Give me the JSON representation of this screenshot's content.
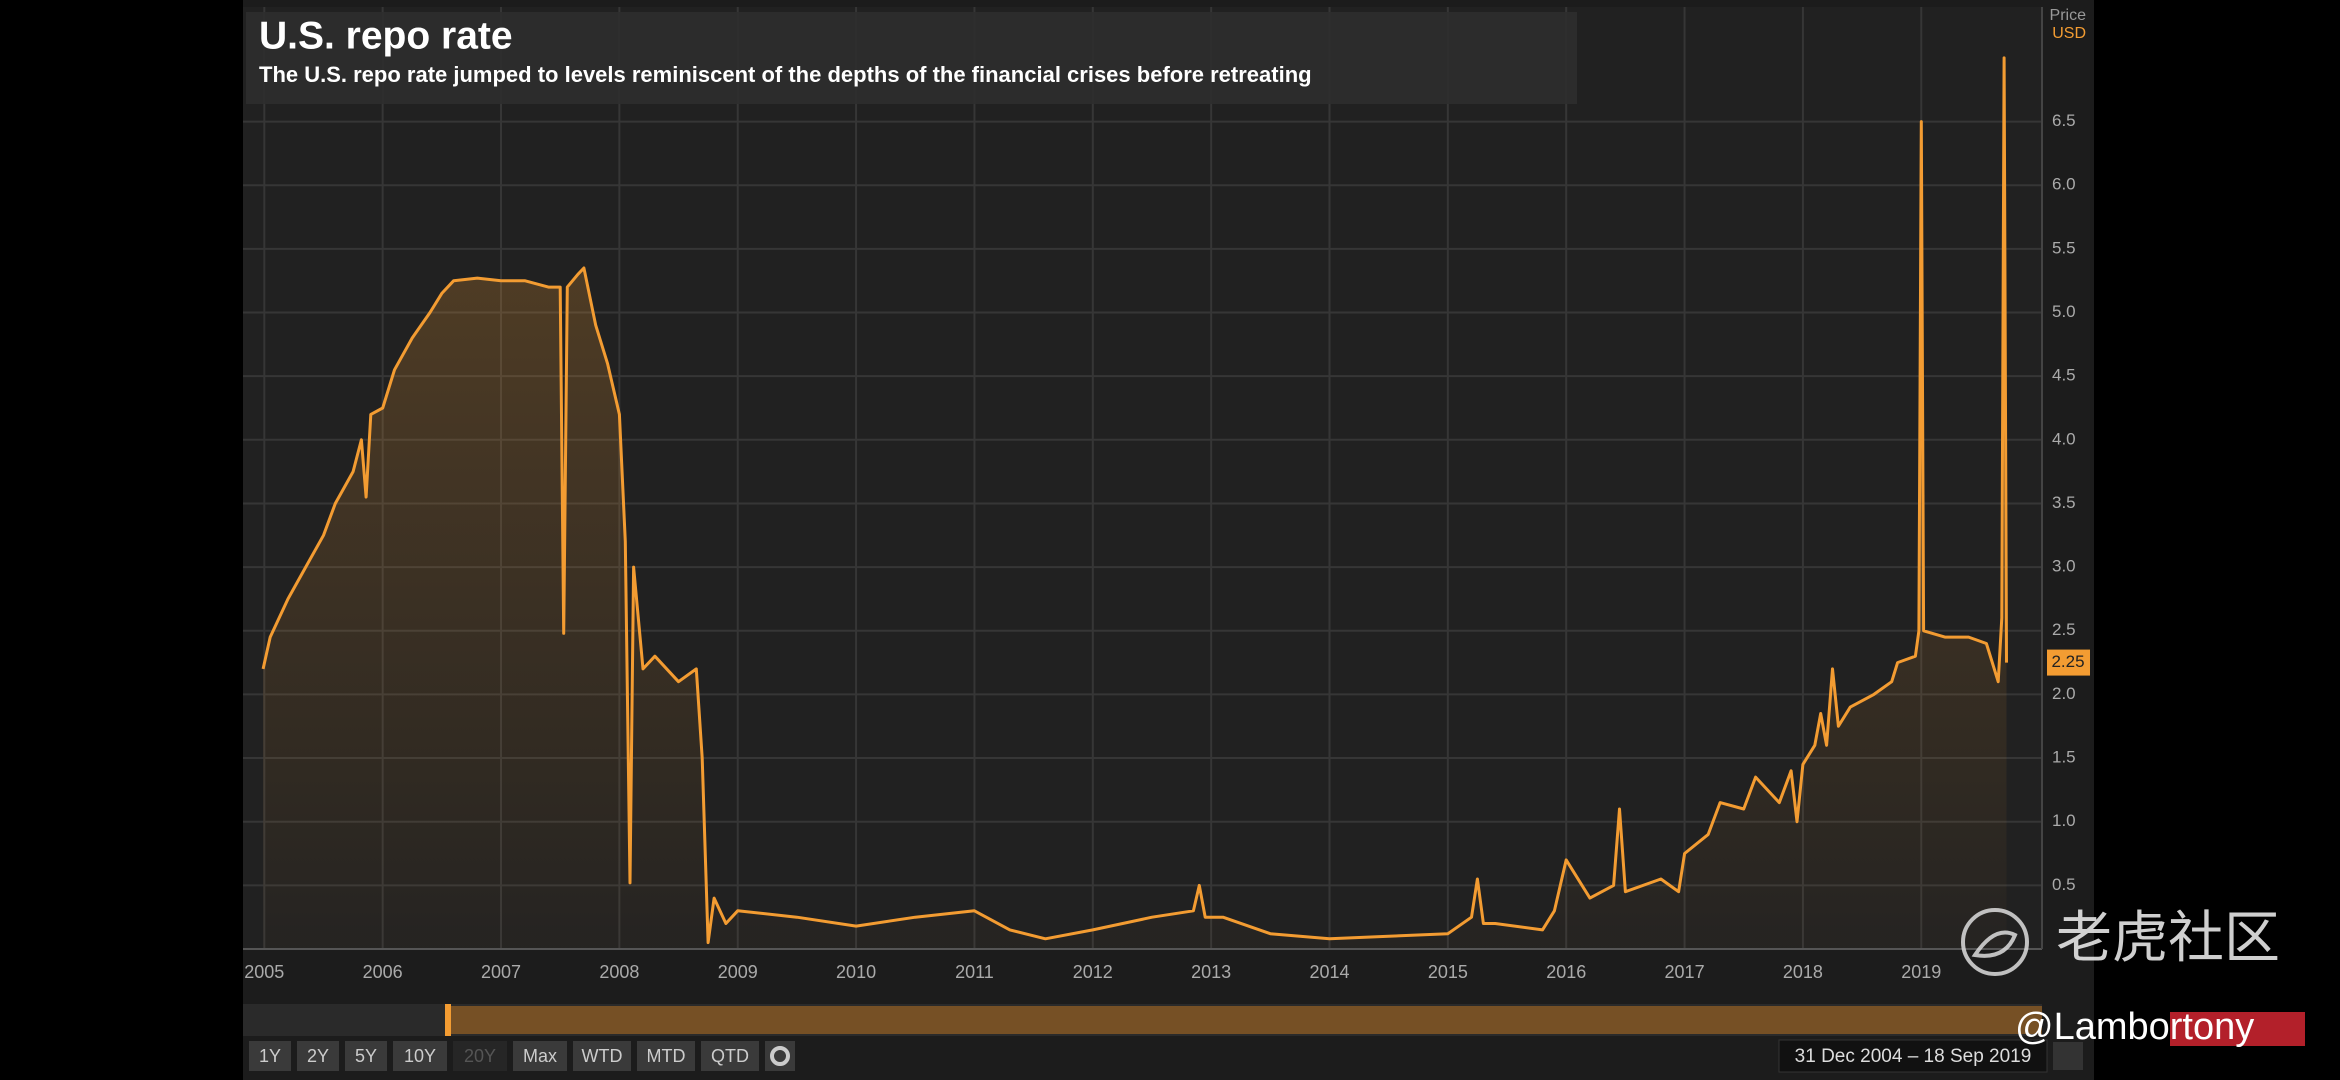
{
  "chart_data": {
    "type": "line",
    "title": "U.S. repo rate",
    "subtitle": "The U.S. repo rate jumped to levels reminiscent of the depths of the financial crises before retreating",
    "y_axis_label": "Price",
    "y_axis_unit": "USD",
    "series": [
      {
        "name": "U.S. repo rate",
        "color": "#f39c32",
        "x": [
          2004.99,
          2005.05,
          2005.2,
          2005.35,
          2005.5,
          2005.6,
          2005.75,
          2005.82,
          2005.86,
          2005.9,
          2006.0,
          2006.1,
          2006.25,
          2006.4,
          2006.5,
          2006.6,
          2006.8,
          2007.0,
          2007.2,
          2007.4,
          2007.5,
          2007.53,
          2007.56,
          2007.65,
          2007.7,
          2007.8,
          2007.9,
          2008.0,
          2008.05,
          2008.09,
          2008.12,
          2008.2,
          2008.3,
          2008.5,
          2008.65,
          2008.7,
          2008.75,
          2008.8,
          2008.9,
          2009.0,
          2009.5,
          2010.0,
          2010.5,
          2011.0,
          2011.3,
          2011.6,
          2012.0,
          2012.5,
          2012.85,
          2012.9,
          2012.95,
          2013.1,
          2013.5,
          2014.0,
          2014.5,
          2015.0,
          2015.2,
          2015.25,
          2015.3,
          2015.4,
          2015.8,
          2015.9,
          2016.0,
          2016.2,
          2016.4,
          2016.45,
          2016.5,
          2016.8,
          2016.95,
          2017.0,
          2017.2,
          2017.3,
          2017.5,
          2017.6,
          2017.8,
          2017.9,
          2017.95,
          2018.0,
          2018.1,
          2018.15,
          2018.2,
          2018.25,
          2018.3,
          2018.4,
          2018.6,
          2018.75,
          2018.8,
          2018.95,
          2018.98,
          2019.0,
          2019.02,
          2019.2,
          2019.4,
          2019.55,
          2019.65,
          2019.68,
          2019.7,
          2019.72
        ],
        "values": [
          2.2,
          2.45,
          2.75,
          3.0,
          3.25,
          3.5,
          3.75,
          4.0,
          3.55,
          4.2,
          4.25,
          4.55,
          4.8,
          5.0,
          5.15,
          5.25,
          5.27,
          5.25,
          5.25,
          5.2,
          5.2,
          2.48,
          5.2,
          5.3,
          5.35,
          4.9,
          4.6,
          4.2,
          3.2,
          0.52,
          3.0,
          2.2,
          2.3,
          2.1,
          2.2,
          1.5,
          0.05,
          0.4,
          0.2,
          0.3,
          0.25,
          0.18,
          0.25,
          0.3,
          0.15,
          0.08,
          0.15,
          0.25,
          0.3,
          0.5,
          0.25,
          0.25,
          0.12,
          0.08,
          0.1,
          0.12,
          0.25,
          0.55,
          0.2,
          0.2,
          0.15,
          0.3,
          0.7,
          0.4,
          0.5,
          1.1,
          0.45,
          0.55,
          0.45,
          0.75,
          0.9,
          1.15,
          1.1,
          1.35,
          1.15,
          1.4,
          1.0,
          1.45,
          1.6,
          1.85,
          1.6,
          2.2,
          1.75,
          1.9,
          2.0,
          2.1,
          2.25,
          2.3,
          2.5,
          6.5,
          2.5,
          2.45,
          2.45,
          2.4,
          2.1,
          2.6,
          7.0,
          2.25
        ]
      }
    ],
    "last_value": 2.25,
    "xlim": [
      2004.82,
      2020.02
    ],
    "xticks": [
      2005,
      2006,
      2007,
      2008,
      2009,
      2010,
      2011,
      2012,
      2013,
      2014,
      2015,
      2016,
      2017,
      2018,
      2019
    ],
    "ylim": [
      0,
      7.4
    ],
    "yticks": [
      0.5,
      {
        "value": 1,
        "label": "1.0"
      },
      1.5,
      {
        "value": 2,
        "label": "2.0"
      },
      2.5,
      {
        "value": 3,
        "label": "3.0"
      },
      3.5,
      {
        "value": 4,
        "label": "4.0"
      },
      4.5,
      {
        "value": 5,
        "label": "5.0"
      },
      5.5,
      {
        "value": 6,
        "label": "6.0"
      },
      6.5
    ],
    "grid": true
  },
  "controls": {
    "buttons": [
      "1Y",
      "2Y",
      "5Y",
      "10Y",
      "20Y",
      "Max",
      "WTD",
      "MTD",
      "QTD"
    ],
    "date_range": "31 Dec 2004 – 18 Sep 2019"
  },
  "watermark": {
    "brand": "老虎社区",
    "handle": "@Lambortony"
  }
}
